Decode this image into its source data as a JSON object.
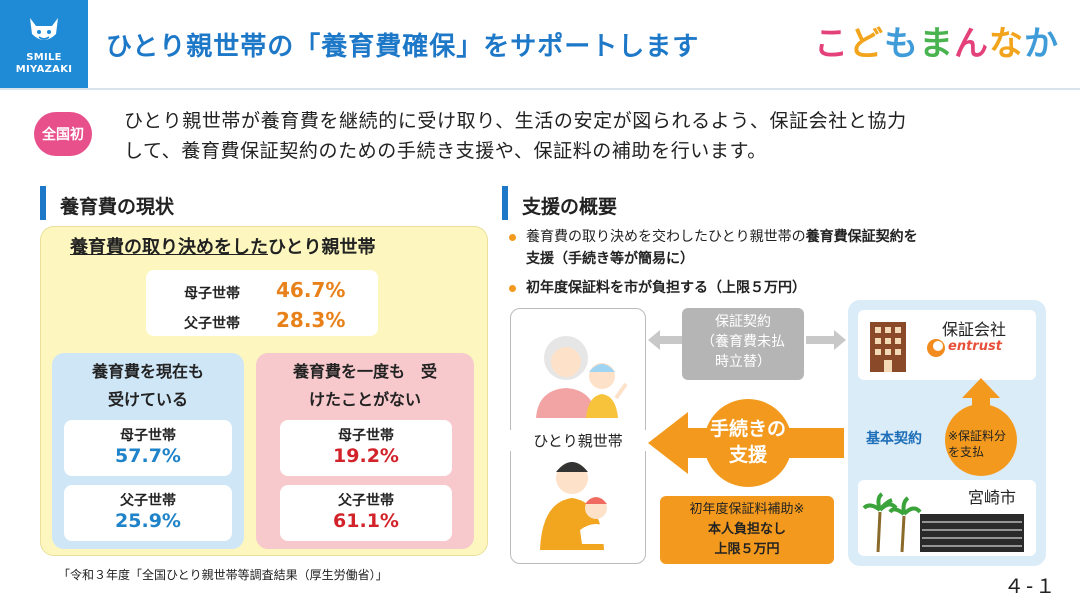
{
  "header": {
    "logo_line1": "SMILE",
    "logo_line2": "MIYAZAKI",
    "title": "ひとり親世帯の「養育費確保」をサポートします",
    "brand_chars": [
      "こ",
      "ど",
      "も",
      "ま",
      "ん",
      "な",
      "か"
    ]
  },
  "intro": {
    "badge": "全国初",
    "line1": "ひとり親世帯が養育費を継続的に受け取り、生活の安定が図られるよう、保証会社と協力",
    "line2": "して、養育費保証契約のための手続き支援や、保証料の補助を行います。"
  },
  "left": {
    "section_title": "養育費の現状",
    "heading_underlined": "養育費の取り決めをした",
    "heading_rest": "ひとり親世帯",
    "top_stats": [
      {
        "label": "母子世帯",
        "value": "46.7%"
      },
      {
        "label": "父子世帯",
        "value": "28.3%"
      }
    ],
    "receiving": {
      "title_line1": "養育費を現在も",
      "title_line2": "受けている",
      "stats": [
        {
          "label": "母子世帯",
          "value": "57.7%"
        },
        {
          "label": "父子世帯",
          "value": "25.9%"
        }
      ]
    },
    "never": {
      "title_line1": "養育費を一度も　受",
      "title_line2": "けたことがない",
      "stats": [
        {
          "label": "母子世帯",
          "value": "19.2%"
        },
        {
          "label": "父子世帯",
          "value": "61.1%"
        }
      ]
    },
    "source": "「令和３年度「全国ひとり親世帯等調査結果（厚生労働省）」"
  },
  "right": {
    "section_title": "支援の概要",
    "bullet1_line1_plain": "養育費の取り決めを交わしたひとり親世帯の",
    "bullet1_line1_bold": "養育費保証契約を",
    "bullet1_line2": "支援（手続き等が簡易に）",
    "bullet2": "初年度保証料を市が負担する（上限５万円）",
    "diagram": {
      "contract_line1": "保証契約",
      "contract_line2": "（養育費未払",
      "contract_line3": "時立替）",
      "company_label": "保証会社",
      "company_logo": "entrust",
      "single_parent_label": "ひとり親世帯",
      "procedure_line1": "手続きの",
      "procedure_line2": "支援",
      "basic_contract": "基本契約",
      "fee_line1": "※保証料分",
      "fee_line2": "を支払",
      "city_label": "宮崎市",
      "subsidy_line1": "初年度保証料補助※",
      "subsidy_line2": "本人負担なし",
      "subsidy_line3": "上限５万円"
    }
  },
  "page_number": "４-１"
}
